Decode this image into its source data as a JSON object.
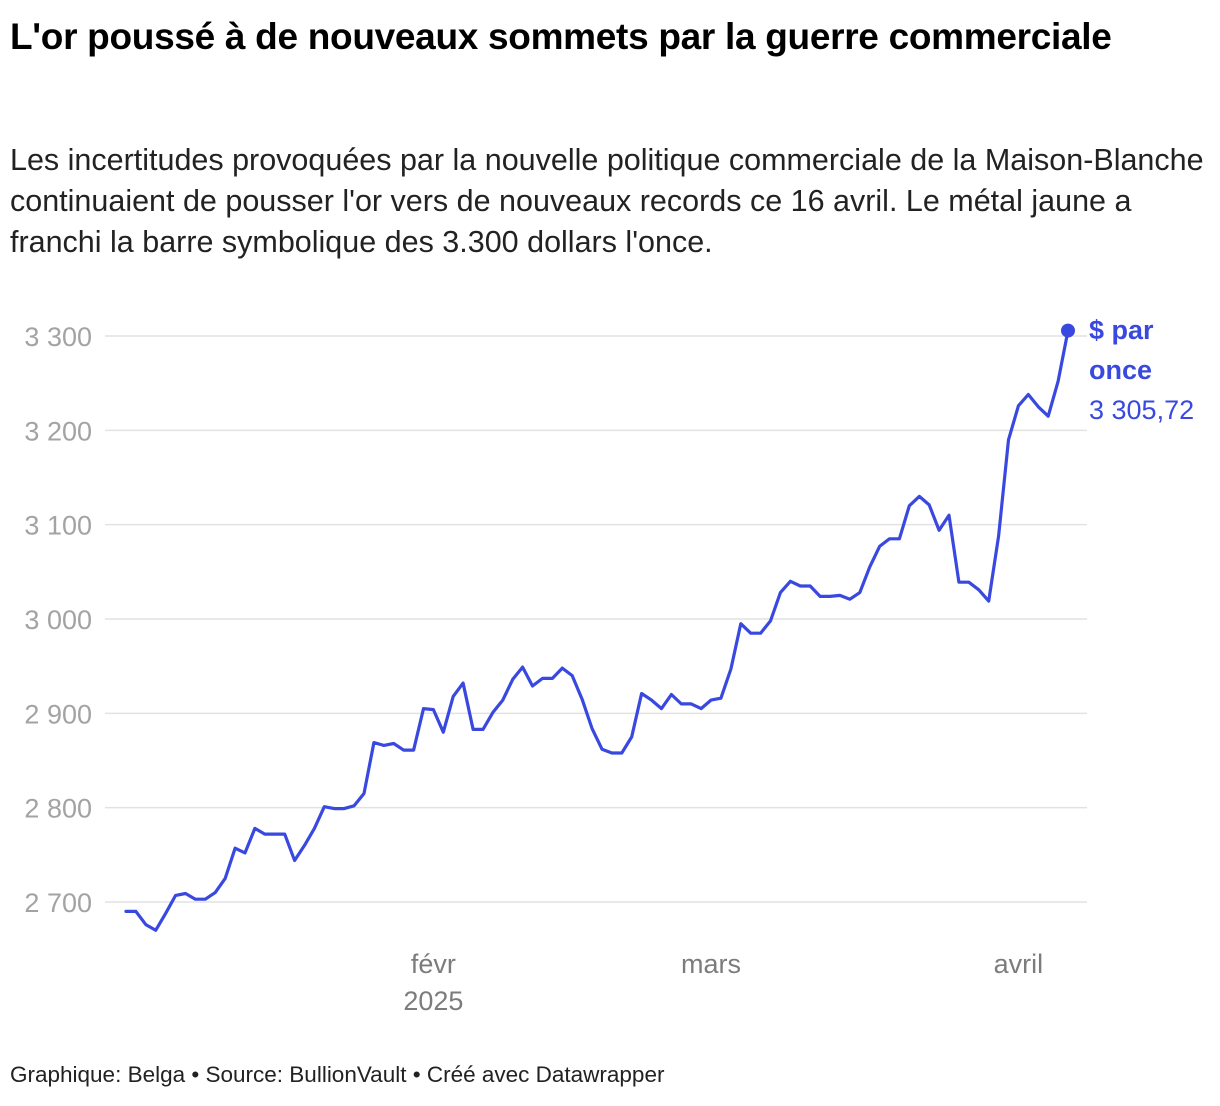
{
  "title": "L'or poussé à de nouveaux sommets par la guerre commerciale",
  "subtitle": "Les incertitudes provoquées par la nouvelle politique commerciale de la Maison-Blanche continuaient de pousser l'or vers de nouveaux records ce 16 avril. Le métal jaune a franchi la barre symbolique des 3.300 dollars l'once.",
  "footer": "Graphique: Belga • Source: BullionVault • Créé avec Datawrapper",
  "colors": {
    "line": "#3949e0",
    "grid": "#e2e2e2",
    "ytick": "#a3a3a3",
    "xtick": "#7c7c7c"
  },
  "chart_data": {
    "type": "line",
    "ylim": [
      2655,
      3310
    ],
    "grid": true,
    "y_ticks": [
      {
        "value": 3300,
        "label": "3 300"
      },
      {
        "value": 3200,
        "label": "3 200"
      },
      {
        "value": 3100,
        "label": "3 100"
      },
      {
        "value": 3000,
        "label": "3 000"
      },
      {
        "value": 2900,
        "label": "2 900"
      },
      {
        "value": 2800,
        "label": "2 800"
      },
      {
        "value": 2700,
        "label": "2 700"
      }
    ],
    "x_ticks": [
      {
        "date": "2025-02-01",
        "label": "févr",
        "sublabel": "2025"
      },
      {
        "date": "2025-03-01",
        "label": "mars",
        "sublabel": ""
      },
      {
        "date": "2025-04-01",
        "label": "avril",
        "sublabel": ""
      }
    ],
    "series": [
      {
        "name": "$ par once",
        "end_value_label": "3 305,72",
        "points": [
          [
            "2025-01-01",
            2690
          ],
          [
            "2025-01-02",
            2690
          ],
          [
            "2025-01-03",
            2676
          ],
          [
            "2025-01-04",
            2670
          ],
          [
            "2025-01-05",
            2688
          ],
          [
            "2025-01-06",
            2707
          ],
          [
            "2025-01-07",
            2709
          ],
          [
            "2025-01-08",
            2703
          ],
          [
            "2025-01-09",
            2703
          ],
          [
            "2025-01-10",
            2710
          ],
          [
            "2025-01-11",
            2725
          ],
          [
            "2025-01-12",
            2757
          ],
          [
            "2025-01-13",
            2752
          ],
          [
            "2025-01-14",
            2778
          ],
          [
            "2025-01-15",
            2772
          ],
          [
            "2025-01-16",
            2772
          ],
          [
            "2025-01-17",
            2772
          ],
          [
            "2025-01-18",
            2744
          ],
          [
            "2025-01-19",
            2760
          ],
          [
            "2025-01-20",
            2778
          ],
          [
            "2025-01-21",
            2801
          ],
          [
            "2025-01-22",
            2799
          ],
          [
            "2025-01-23",
            2799
          ],
          [
            "2025-01-24",
            2802
          ],
          [
            "2025-01-25",
            2815
          ],
          [
            "2025-01-26",
            2869
          ],
          [
            "2025-01-27",
            2866
          ],
          [
            "2025-01-28",
            2868
          ],
          [
            "2025-01-29",
            2861
          ],
          [
            "2025-01-30",
            2861
          ],
          [
            "2025-01-31",
            2905
          ],
          [
            "2025-02-01",
            2904
          ],
          [
            "2025-02-02",
            2880
          ],
          [
            "2025-02-03",
            2918
          ],
          [
            "2025-02-04",
            2932
          ],
          [
            "2025-02-05",
            2883
          ],
          [
            "2025-02-06",
            2883
          ],
          [
            "2025-02-07",
            2901
          ],
          [
            "2025-02-08",
            2914
          ],
          [
            "2025-02-09",
            2936
          ],
          [
            "2025-02-10",
            2949
          ],
          [
            "2025-02-11",
            2929
          ],
          [
            "2025-02-12",
            2937
          ],
          [
            "2025-02-13",
            2937
          ],
          [
            "2025-02-14",
            2948
          ],
          [
            "2025-02-15",
            2940
          ],
          [
            "2025-02-16",
            2915
          ],
          [
            "2025-02-17",
            2884
          ],
          [
            "2025-02-18",
            2862
          ],
          [
            "2025-02-19",
            2858
          ],
          [
            "2025-02-20",
            2858
          ],
          [
            "2025-02-21",
            2875
          ],
          [
            "2025-02-22",
            2921
          ],
          [
            "2025-02-23",
            2914
          ],
          [
            "2025-02-24",
            2905
          ],
          [
            "2025-02-25",
            2920
          ],
          [
            "2025-02-26",
            2910
          ],
          [
            "2025-02-27",
            2910
          ],
          [
            "2025-02-28",
            2905
          ],
          [
            "2025-03-01",
            2914
          ],
          [
            "2025-03-02",
            2916
          ],
          [
            "2025-03-03",
            2947
          ],
          [
            "2025-03-04",
            2995
          ],
          [
            "2025-03-05",
            2985
          ],
          [
            "2025-03-06",
            2985
          ],
          [
            "2025-03-07",
            2998
          ],
          [
            "2025-03-08",
            3028
          ],
          [
            "2025-03-09",
            3040
          ],
          [
            "2025-03-10",
            3035
          ],
          [
            "2025-03-11",
            3035
          ],
          [
            "2025-03-12",
            3024
          ],
          [
            "2025-03-13",
            3024
          ],
          [
            "2025-03-14",
            3025
          ],
          [
            "2025-03-15",
            3021
          ],
          [
            "2025-03-16",
            3028
          ],
          [
            "2025-03-17",
            3055
          ],
          [
            "2025-03-18",
            3077
          ],
          [
            "2025-03-19",
            3085
          ],
          [
            "2025-03-20",
            3085
          ],
          [
            "2025-03-21",
            3120
          ],
          [
            "2025-03-22",
            3130
          ],
          [
            "2025-03-23",
            3121
          ],
          [
            "2025-03-24",
            3094
          ],
          [
            "2025-03-25",
            3110
          ],
          [
            "2025-03-26",
            3039
          ],
          [
            "2025-03-27",
            3039
          ],
          [
            "2025-03-28",
            3031
          ],
          [
            "2025-03-29",
            3019
          ],
          [
            "2025-03-30",
            3088
          ],
          [
            "2025-03-31",
            3190
          ],
          [
            "2025-04-01",
            3226
          ],
          [
            "2025-04-02",
            3238
          ],
          [
            "2025-04-03",
            3225
          ],
          [
            "2025-04-04",
            3215
          ],
          [
            "2025-04-05",
            3252
          ],
          [
            "2025-04-06",
            3305.72
          ]
        ]
      }
    ]
  }
}
